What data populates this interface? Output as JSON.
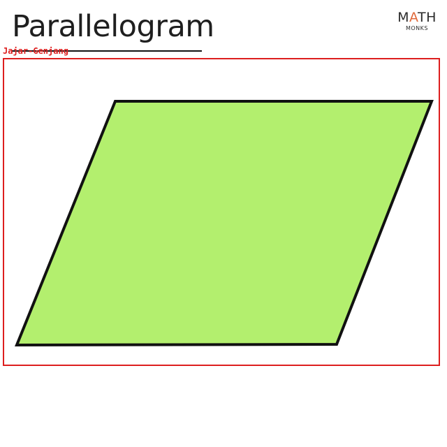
{
  "title": "Parallelogram",
  "logo": {
    "main_before": "M",
    "main_accent": "A",
    "main_after": "TH",
    "sub": "MONKS",
    "accent_color": "#e0693a"
  },
  "annotation": {
    "label": "Jajar-Genjang",
    "color": "#dd1e1e"
  },
  "shape": {
    "name": "parallelogram",
    "fill_color": "#b3ef6e",
    "stroke_color": "#111111"
  }
}
